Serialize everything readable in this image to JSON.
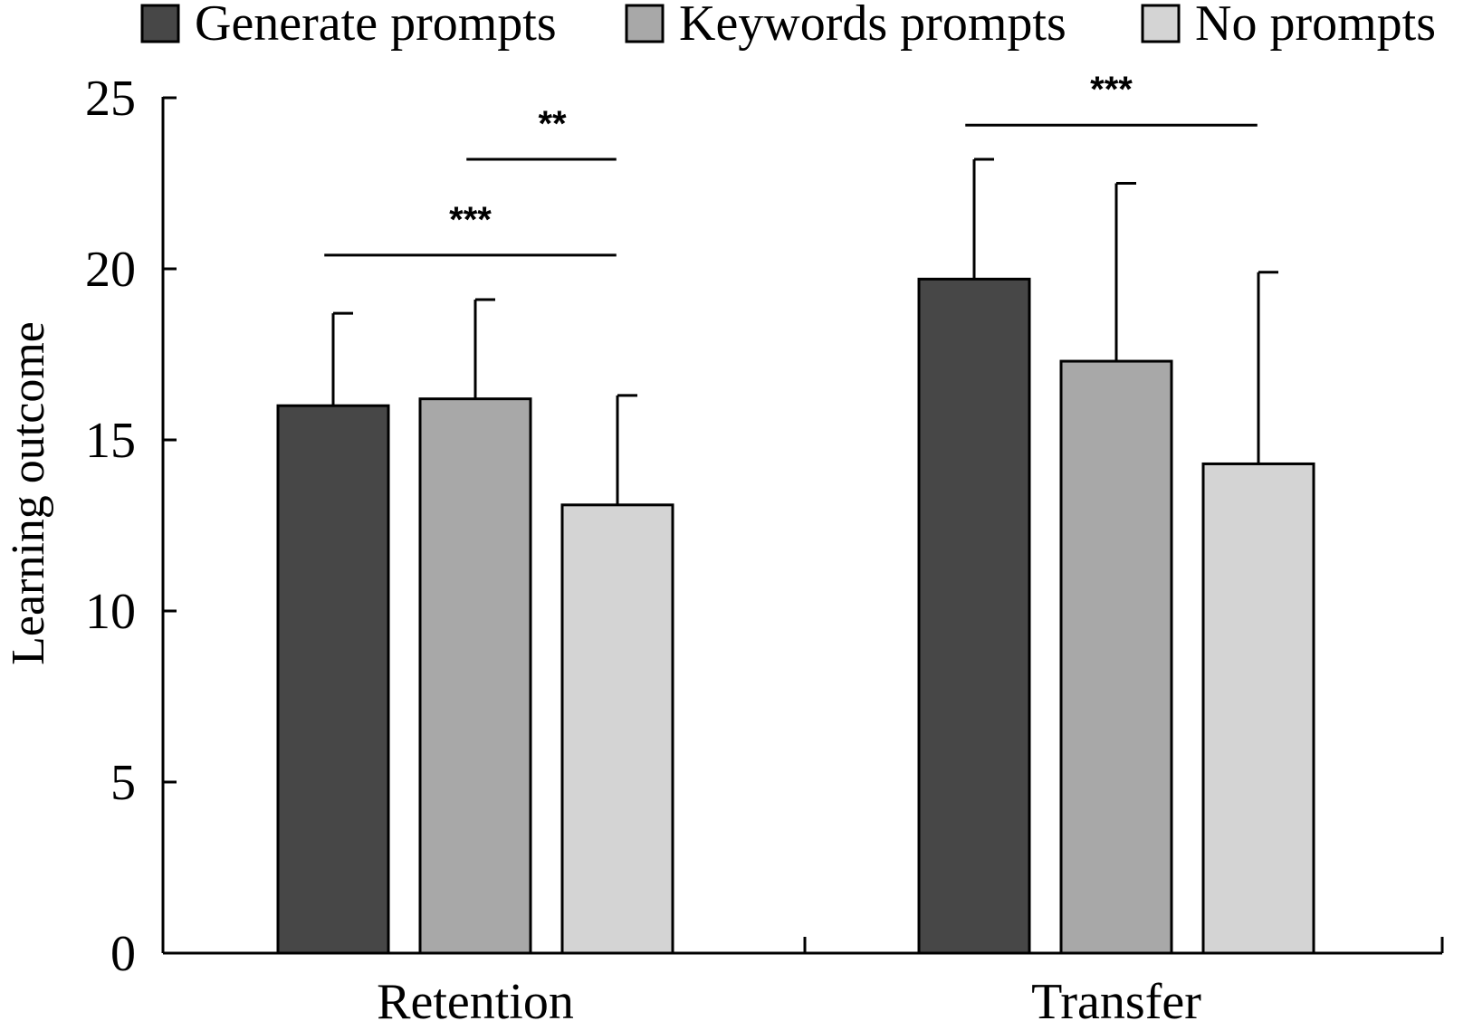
{
  "chart_data": {
    "type": "bar",
    "title": "",
    "xlabel": "",
    "ylabel": "Learning outcome",
    "ylim": [
      0,
      25
    ],
    "yticks": [
      0,
      5,
      10,
      15,
      20,
      25
    ],
    "categories": [
      "Retention",
      "Transfer"
    ],
    "series": [
      {
        "name": "Generate prompts",
        "color": "#474747",
        "values": [
          16.0,
          19.7
        ],
        "errors": [
          2.7,
          3.5
        ]
      },
      {
        "name": "Keywords prompts",
        "color": "#a8a8a8",
        "values": [
          16.2,
          17.3
        ],
        "errors": [
          2.9,
          5.2
        ]
      },
      {
        "name": "No prompts",
        "color": "#d4d4d4",
        "values": [
          13.1,
          14.3
        ],
        "errors": [
          3.2,
          5.6
        ]
      }
    ],
    "legend_position": "top",
    "grid": false,
    "significance": [
      {
        "category": "Retention",
        "from_series": 1,
        "to_series": 2,
        "y": 23.2,
        "label": "**"
      },
      {
        "category": "Retention",
        "from_series": 0,
        "to_series": 2,
        "y": 20.4,
        "label": "***"
      },
      {
        "category": "Transfer",
        "from_series": 0,
        "to_series": 2,
        "y": 24.2,
        "label": "***"
      }
    ]
  }
}
